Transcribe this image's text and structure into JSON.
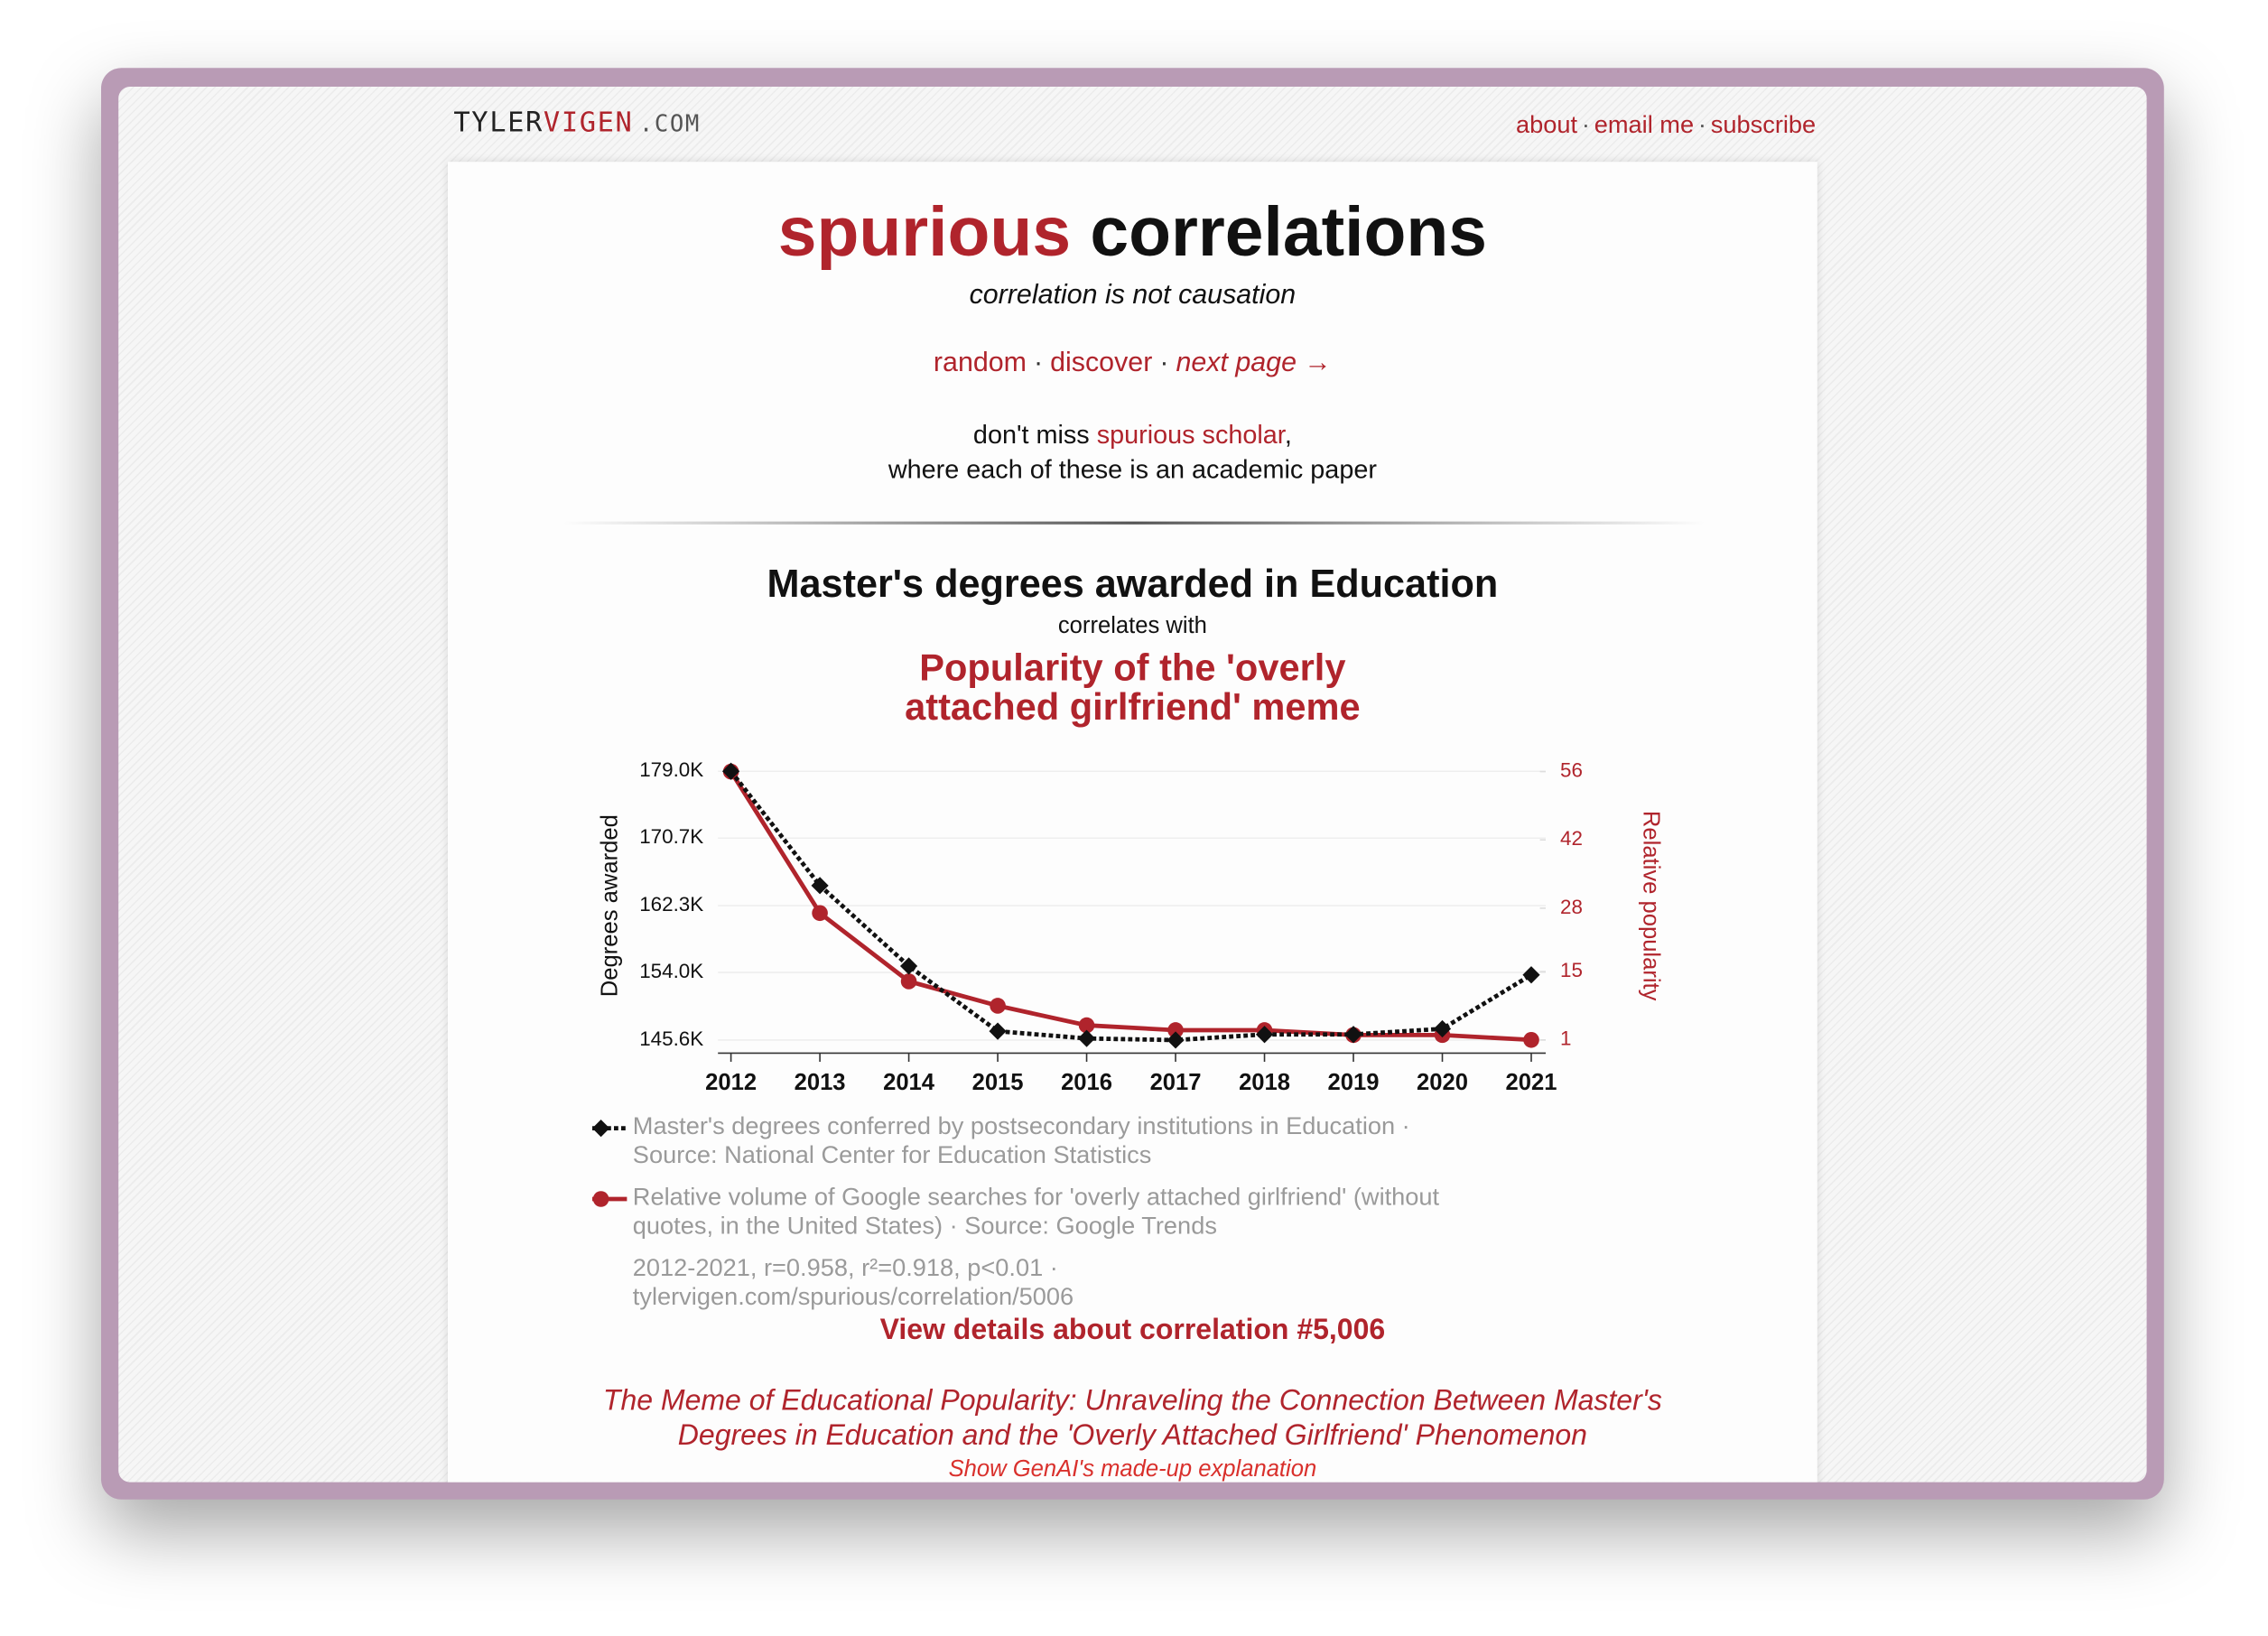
{
  "header": {
    "logo": [
      "Tyler",
      "Vigen",
      ".com"
    ],
    "nav": [
      "about",
      "email me",
      "subscribe"
    ],
    "separator": "·"
  },
  "hero": {
    "title": [
      "spurious",
      "correlations"
    ],
    "tagline": "correlation is not causation",
    "links": [
      "random",
      "discover",
      "next page →"
    ],
    "promo": [
      "don't miss",
      "spurious scholar",
      ",",
      "where each of these is an academic paper"
    ]
  },
  "chart_data": {
    "type": "line",
    "title": "Master's degrees awarded in Education",
    "connector": "correlates with",
    "subtitle": "Popularity of the 'overly attached girlfriend' meme",
    "categories": [
      "2012",
      "2013",
      "2014",
      "2015",
      "2016",
      "2017",
      "2018",
      "2019",
      "2020",
      "2021"
    ],
    "ylabel": "Degrees awarded",
    "y2label": "Relative popularity",
    "ylim": [
      143800,
      180600
    ],
    "yticks": [
      {
        "value": 145600,
        "label": "145.6K"
      },
      {
        "value": 154000,
        "label": "154.0K"
      },
      {
        "value": 162300,
        "label": "162.3K"
      },
      {
        "value": 170700,
        "label": "170.7K"
      },
      {
        "value": 179000,
        "label": "179.0K"
      }
    ],
    "y2lim": [
      -2,
      58.7
    ],
    "y2ticks": [
      1,
      15,
      28,
      42,
      56
    ],
    "grid": true,
    "series": [
      {
        "name": "Master's degrees conferred by postsecondary institutions in Education · Source: National Center for Education Statistics",
        "color": "#111111",
        "line_style": "dotted",
        "marker": "diamond",
        "values": [
          179000,
          164800,
          154800,
          146700,
          145800,
          145600,
          146300,
          146300,
          147000,
          153700
        ]
      },
      {
        "name": "Relative volume of Google searches for 'overly attached girlfriend' (without quotes, in the United States) · Source: Google Trends",
        "color": "#b0242c",
        "line_style": "solid",
        "marker": "circle",
        "axis": "y2",
        "values": [
          56,
          27,
          13,
          8,
          4,
          3,
          3,
          2,
          2,
          1
        ]
      }
    ],
    "stats": "2012-2021, r=0.958, r²=0.918, p<0.01 · tylervigen.com/spurious/correlation/5006"
  },
  "footer": {
    "details_link": "View details about correlation #5,006",
    "paper_title": "The Meme of Educational Popularity: Unraveling the Connection Between Master's Degrees in Education and the 'Overly Attached Girlfriend' Phenomenon",
    "explanation_link": "Show GenAI's made-up explanation"
  }
}
